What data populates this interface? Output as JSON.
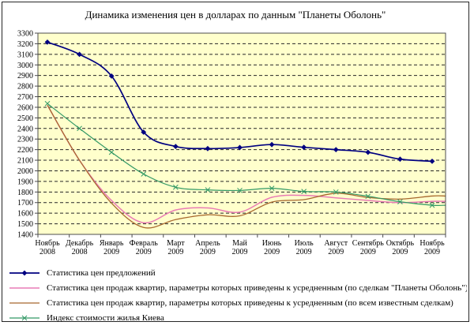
{
  "chart_data": {
    "type": "line",
    "title": "Динамика изменения цен в долларах по данным \"Планеты Оболонь\"",
    "plot_bg_color": "#ffffcc",
    "grid": "horizontal-dashed",
    "legend_position": "bottom-left",
    "ylim": [
      1400,
      3300
    ],
    "ystep": 100,
    "ytick_labels": [
      "3300",
      "3200",
      "3100",
      "3000",
      "2900",
      "2800",
      "2700",
      "2600",
      "2500",
      "2400",
      "2300",
      "2200",
      "2100",
      "2000",
      "1900",
      "1800",
      "1700",
      "1600",
      "1500",
      "1400"
    ],
    "categories": [
      {
        "month": "Ноябрь",
        "year": "2008"
      },
      {
        "month": "Декабрь",
        "year": "2008"
      },
      {
        "month": "Январь",
        "year": "2009"
      },
      {
        "month": "Февраль",
        "year": "2009"
      },
      {
        "month": "Март",
        "year": "2009"
      },
      {
        "month": "Апрель",
        "year": "2009"
      },
      {
        "month": "Май",
        "year": "2009"
      },
      {
        "month": "Июнь",
        "year": "2009"
      },
      {
        "month": "Июль",
        "year": "2009"
      },
      {
        "month": "Август",
        "year": "2009"
      },
      {
        "month": "Сентябрь",
        "year": "2009"
      },
      {
        "month": "Октябрь",
        "year": "2009"
      },
      {
        "month": "Ноябрь",
        "year": "2009"
      }
    ],
    "series": [
      {
        "name": "Статистика цен  предложений",
        "color": "#000080",
        "marker": "diamond",
        "line_width": 1.7,
        "extends_to_edge": false,
        "values": [
          3215,
          3100,
          2895,
          2365,
          2230,
          2210,
          2220,
          2248,
          2222,
          2200,
          2175,
          2110,
          2090
        ]
      },
      {
        "name": "Статистика цен продаж квартир, параметры которых приведены к усредненным (по сделкам \"Планеты Оболонь\")",
        "color": "#e97bb5",
        "marker": "none",
        "line_width": 1.5,
        "extends_to_edge": true,
        "values": [
          2620,
          2100,
          1720,
          1510,
          1630,
          1650,
          1610,
          1750,
          1768,
          1745,
          1720,
          1700,
          1712
        ]
      },
      {
        "name": "Статистика цен продаж квартир, параметры которых приведены к усредненным (по всем известным сделкам)",
        "color": "#a8682e",
        "marker": "none",
        "line_width": 1.3,
        "extends_to_edge": true,
        "values": [
          2620,
          2100,
          1695,
          1465,
          1540,
          1585,
          1575,
          1705,
          1728,
          1788,
          1748,
          1733,
          1762
        ]
      },
      {
        "name": "Индекс стоимости жилья Киева",
        "color": "#339966",
        "marker": "x",
        "line_width": 1.2,
        "extends_to_edge": true,
        "values": [
          2635,
          2400,
          2175,
          1970,
          1845,
          1820,
          1815,
          1835,
          1805,
          1800,
          1760,
          1708,
          1675
        ]
      }
    ]
  }
}
